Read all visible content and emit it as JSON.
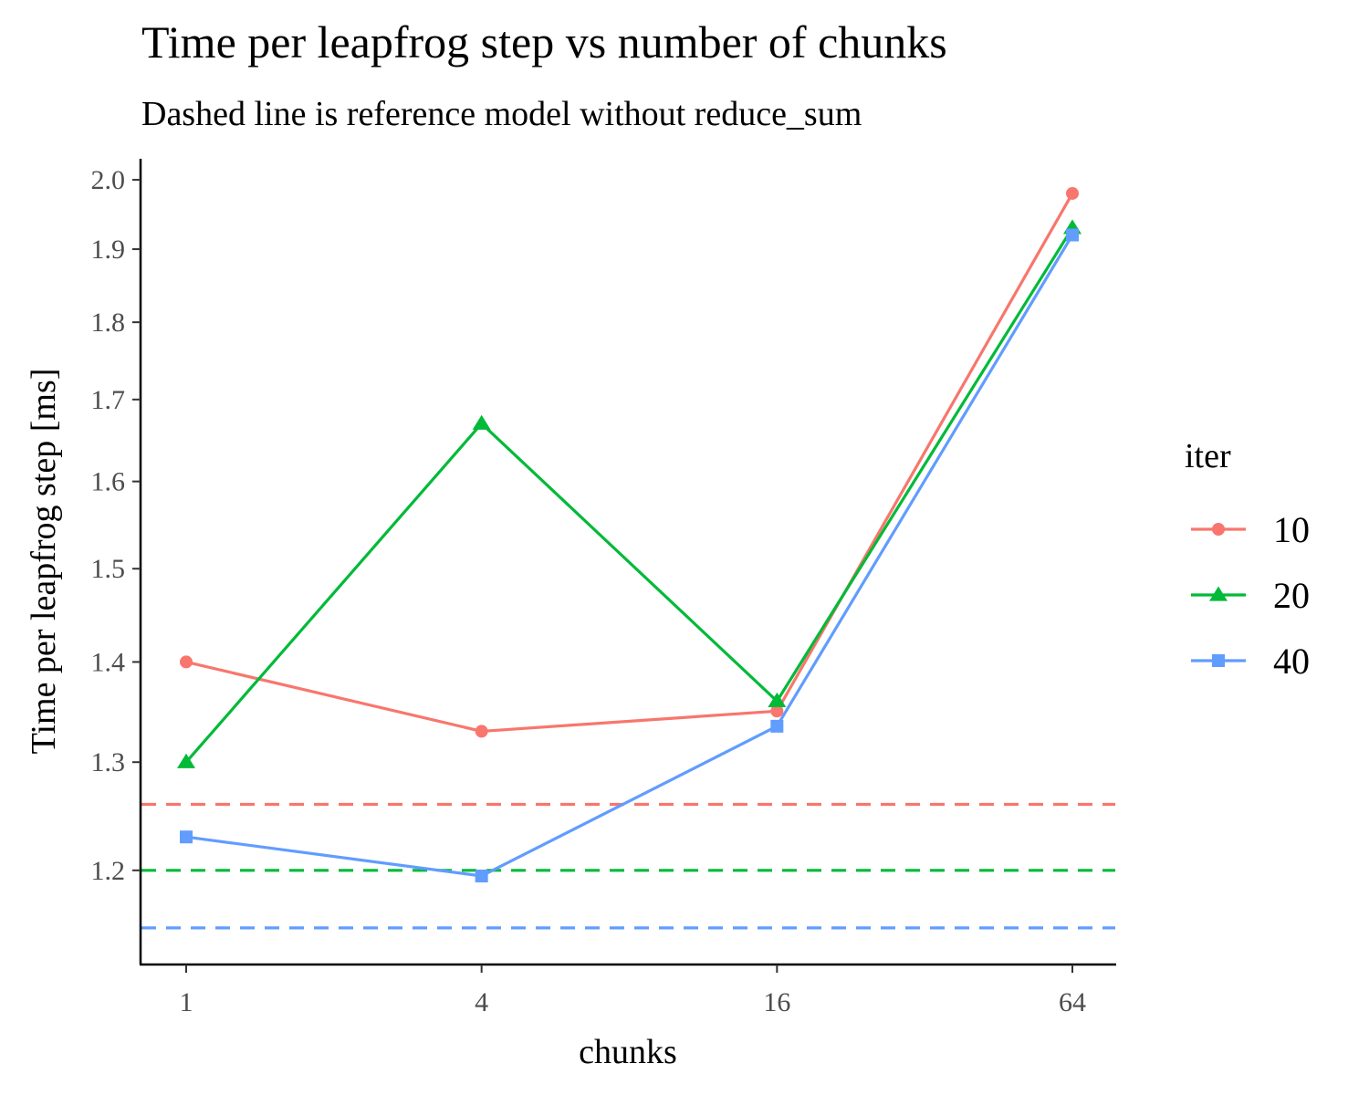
{
  "chart_data": {
    "type": "line",
    "title": "Time per leapfrog step vs number of chunks",
    "subtitle": "Dashed line is reference model without reduce_sum",
    "xlabel": "chunks",
    "ylabel": "Time per leapfrog step [ms]",
    "x_scale": "log2",
    "categories": [
      "1",
      "4",
      "16",
      "64"
    ],
    "x": [
      1,
      4,
      16,
      64
    ],
    "y_scale": "log",
    "y_ticks": [
      1.2,
      1.3,
      1.4,
      1.5,
      1.6,
      1.7,
      1.8,
      1.9,
      2.0
    ],
    "y_tick_labels": [
      "1.2",
      "1.3",
      "1.4",
      "1.5",
      "1.6",
      "1.7",
      "1.8",
      "1.9",
      "2.0"
    ],
    "ylim": [
      1.12,
      2.03
    ],
    "grid": false,
    "legend": {
      "title": "iter",
      "position": "right"
    },
    "series": [
      {
        "name": "10",
        "values": [
          1.4,
          1.33,
          1.35,
          1.98
        ],
        "color": "#F8766D",
        "marker": "circle",
        "reference": 1.26
      },
      {
        "name": "20",
        "values": [
          1.3,
          1.67,
          1.36,
          1.93
        ],
        "color": "#00BA38",
        "marker": "triangle",
        "reference": 1.2
      },
      {
        "name": "40",
        "values": [
          1.23,
          1.195,
          1.335,
          1.92
        ],
        "color": "#619CFF",
        "marker": "square",
        "reference": 1.15
      }
    ]
  }
}
